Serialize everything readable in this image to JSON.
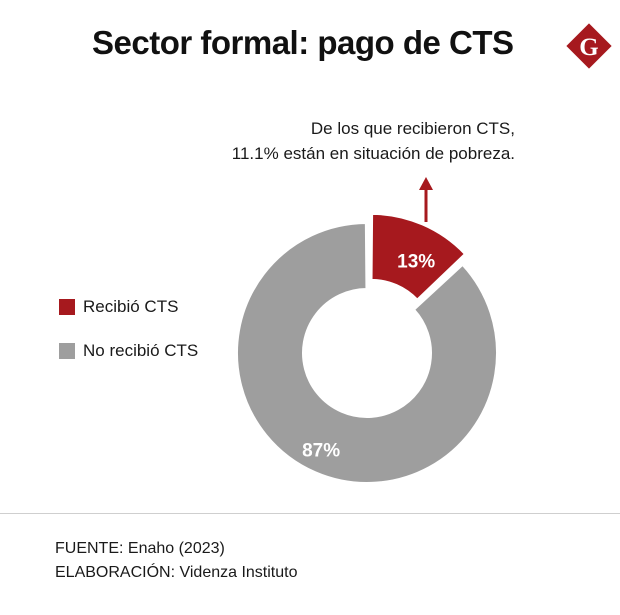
{
  "header": {
    "title": "Sector formal: pago de CTS",
    "logo_letter": "G"
  },
  "annotation": {
    "line1": "De los que recibieron CTS,",
    "line2": "11.1% están en situación de pobreza."
  },
  "chart_data": {
    "type": "pie",
    "variant": "donut",
    "title": "Sector formal: pago de CTS",
    "slices": [
      {
        "label": "Recibió CTS",
        "value": 13,
        "display": "13%",
        "color": "#a6191e",
        "exploded": true
      },
      {
        "label": "No recibió CTS",
        "value": 87,
        "display": "87%",
        "color": "#9e9e9e",
        "exploded": false
      }
    ],
    "legend_position": "left"
  },
  "footer": {
    "source": "FUENTE: Enaho (2023)",
    "credit": "ELABORACIÓN: Videnza Instituto"
  },
  "colors": {
    "accent": "#a6191e",
    "gray": "#9e9e9e",
    "text": "#111111"
  }
}
